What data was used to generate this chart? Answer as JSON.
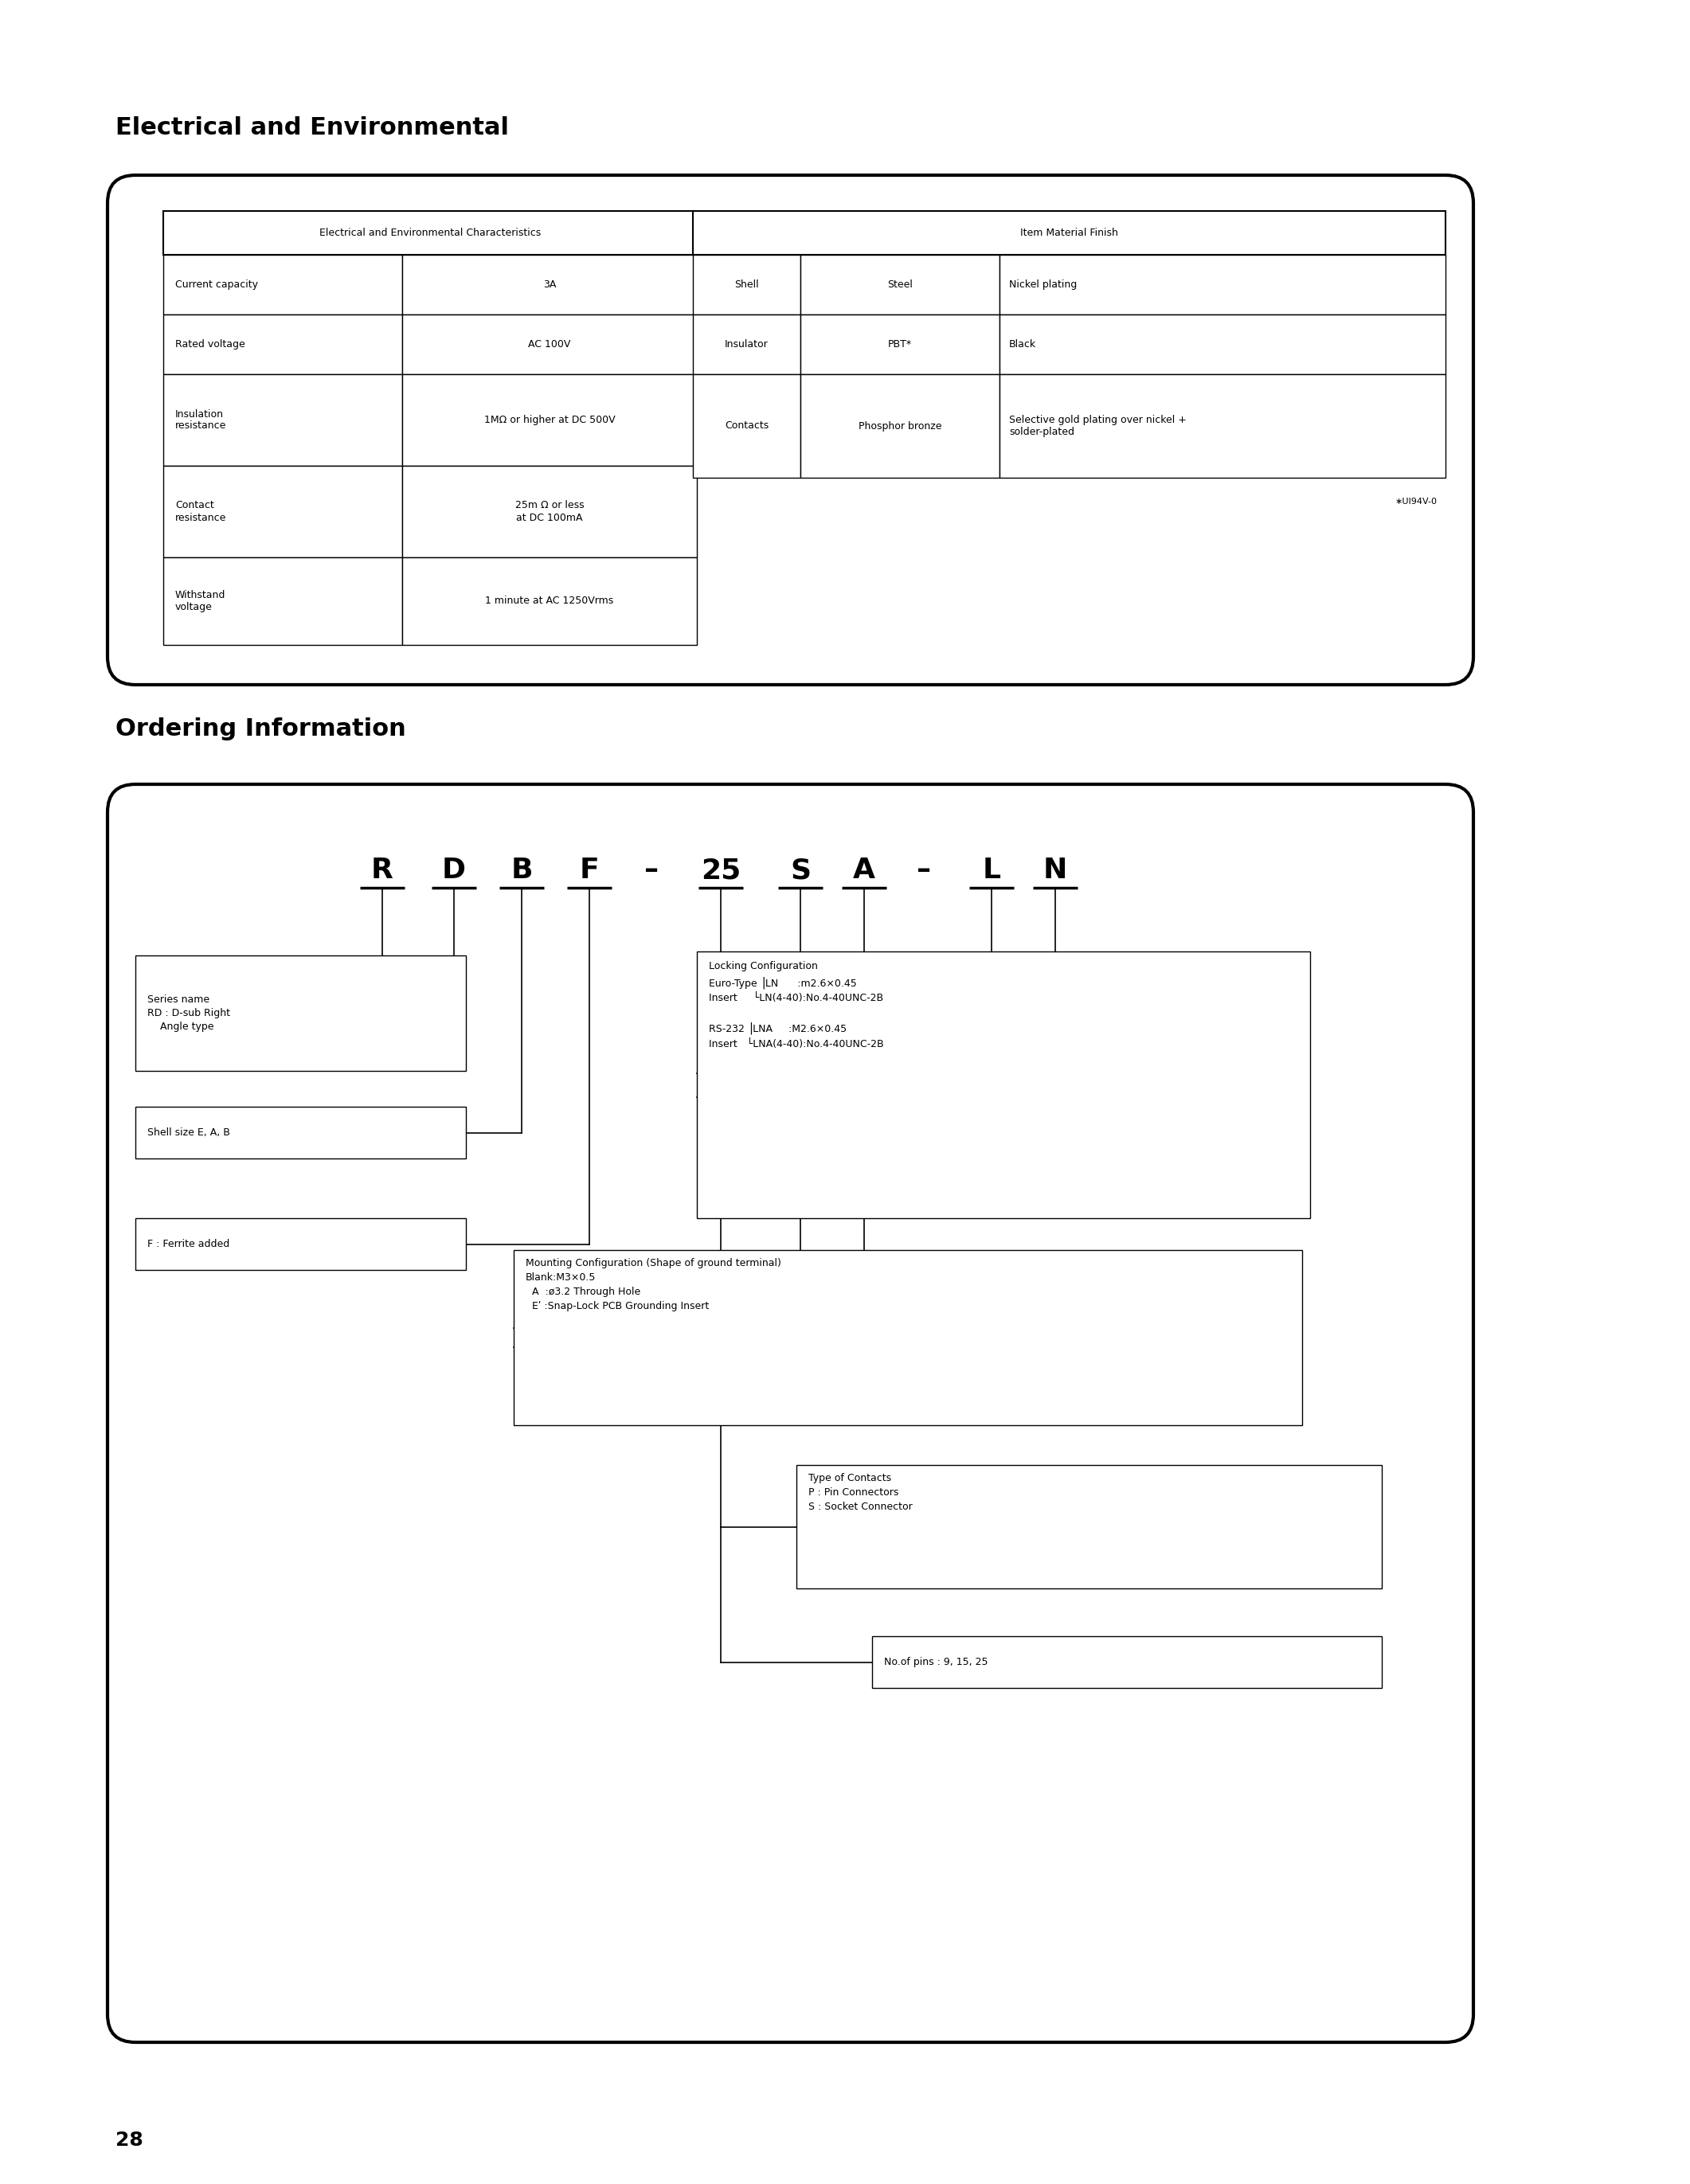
{
  "page_bg": "#ffffff",
  "section1_title": "Electrical and Environmental",
  "section2_title": "Ordering Information",
  "page_number": "28",
  "elec_table": {
    "header": "Electrical and Environmental Characteristics",
    "rows": [
      [
        "Current capacity",
        "3A"
      ],
      [
        "Rated voltage",
        "AC 100V"
      ],
      [
        "Insulation\nresistance",
        "1MΩ or higher at DC 500V"
      ],
      [
        "Contact\nresistance",
        "25m Ω or less\nat DC 100mA"
      ],
      [
        "Withstand\nvoltage",
        "1 minute at AC 1250Vrms"
      ]
    ]
  },
  "material_table": {
    "header": "Item Material Finish",
    "rows": [
      [
        "Shell",
        "Steel",
        "Nickel plating"
      ],
      [
        "Insulator",
        "PBT*",
        "Black"
      ],
      [
        "Contacts",
        "Phosphor bronze",
        "Selective gold plating over nickel +\nsolder-plated"
      ]
    ],
    "footnote": "∗UI94V-0"
  }
}
